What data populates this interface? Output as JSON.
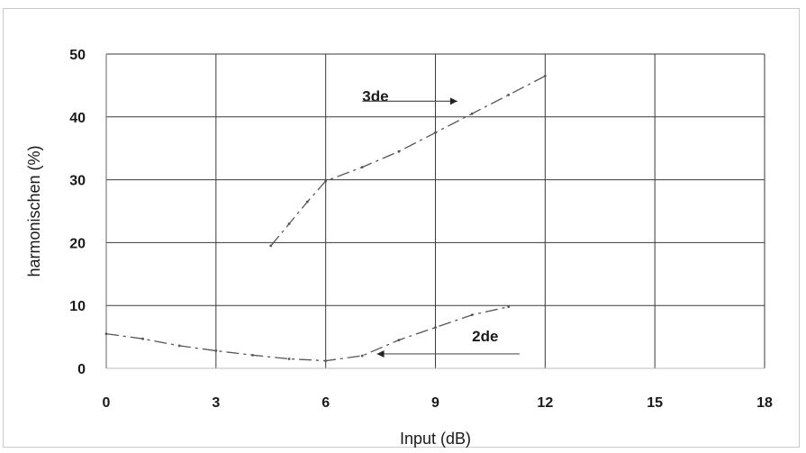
{
  "chart_data": {
    "type": "line",
    "title": "",
    "xlabel": "Input (dB)",
    "ylabel": "harmonischen (%)",
    "xlim": [
      0,
      18
    ],
    "ylim": [
      0,
      50
    ],
    "xticks": [
      "0",
      "3",
      "6",
      "9",
      "12",
      "15",
      "18"
    ],
    "yticks": [
      "0",
      "10",
      "20",
      "30",
      "40",
      "50"
    ],
    "grid": true,
    "series": [
      {
        "name": "2de",
        "color": "#555555",
        "points": [
          [
            0,
            5.5
          ],
          [
            1,
            4.7
          ],
          [
            2,
            3.6
          ],
          [
            3,
            2.8
          ],
          [
            4,
            2.1
          ],
          [
            5,
            1.5
          ],
          [
            6,
            1.2
          ],
          [
            7,
            2.0
          ],
          [
            8,
            4.5
          ],
          [
            9,
            6.5
          ],
          [
            10,
            8.5
          ],
          [
            11,
            9.8
          ]
        ]
      },
      {
        "name": "3de",
        "color": "#555555",
        "points": [
          [
            4.5,
            19.5
          ],
          [
            5,
            23.0
          ],
          [
            5.5,
            26.5
          ],
          [
            6,
            29.8
          ],
          [
            7,
            32.0
          ],
          [
            8,
            34.5
          ],
          [
            9,
            37.5
          ],
          [
            10,
            40.5
          ],
          [
            11,
            43.5
          ],
          [
            12,
            46.5
          ]
        ]
      }
    ],
    "annotations": [
      {
        "text": "3de",
        "x": 7.0,
        "y": 42.5,
        "arrow_from": [
          7.0,
          42.5
        ],
        "arrow_to": [
          9.6,
          42.5
        ],
        "arrow_direction": "right"
      },
      {
        "text": "2de",
        "x": 10.0,
        "y": 4.3,
        "arrow_from": [
          11.3,
          2.3
        ],
        "arrow_to": [
          7.4,
          2.3
        ],
        "arrow_direction": "left"
      }
    ]
  }
}
